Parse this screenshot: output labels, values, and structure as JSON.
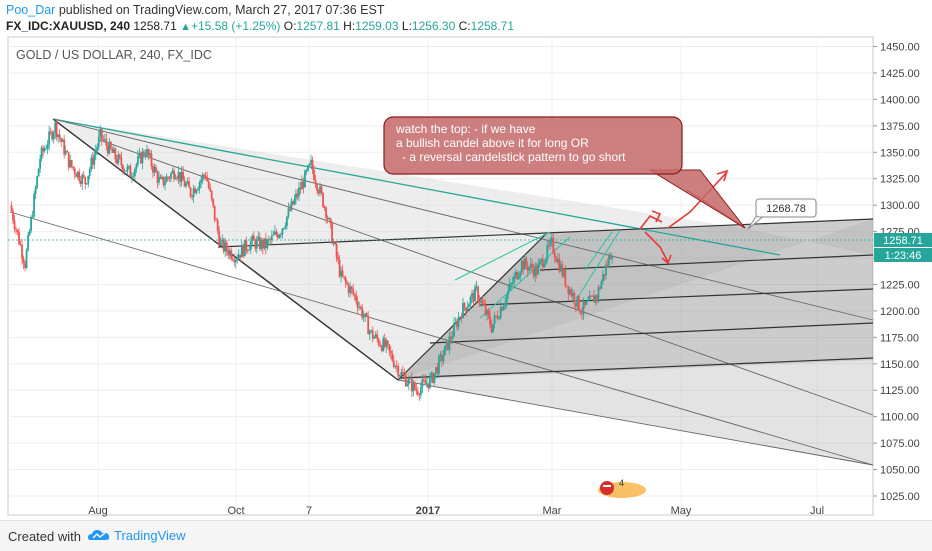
{
  "header": {
    "author": "Poo_Dar",
    "published": "published on TradingView.com, March 27, 2017 07:36 EST",
    "symbol": "FX_IDC:XAUUSD, 240",
    "last": "1258.71",
    "change": "+15.58 (+1.25%)",
    "open_label": "O:",
    "open": "1257.81",
    "high_label": "H:",
    "high": "1259.03",
    "low_label": "L:",
    "low": "1256.30",
    "close_label": "C:",
    "close": "1258.71"
  },
  "chart_data": {
    "type": "candlestick",
    "title": "GOLD / US DOLLAR, 240, FX_IDC",
    "ylim": [
      1007,
      1459
    ],
    "y_ticks": [
      1025,
      1050,
      1075,
      1100,
      1125,
      1150,
      1175,
      1200,
      1225,
      1250,
      1275,
      1300,
      1325,
      1350,
      1375,
      1400,
      1425,
      1450
    ],
    "x_ticks": [
      "Aug",
      "Oct",
      "7",
      "2017",
      "Mar",
      "May",
      "Jul"
    ],
    "price_anchors": [
      [
        0,
        1300
      ],
      [
        1,
        1245
      ],
      [
        2,
        1345
      ],
      [
        3,
        1375
      ],
      [
        4,
        1338
      ],
      [
        5,
        1322
      ],
      [
        6,
        1365
      ],
      [
        7,
        1345
      ],
      [
        8,
        1330
      ],
      [
        9,
        1352
      ],
      [
        10,
        1320
      ],
      [
        11,
        1333
      ],
      [
        12,
        1312
      ],
      [
        13,
        1330
      ],
      [
        14,
        1262
      ],
      [
        15,
        1252
      ],
      [
        16,
        1265
      ],
      [
        17,
        1262
      ],
      [
        18,
        1277
      ],
      [
        19,
        1307
      ],
      [
        20,
        1338
      ],
      [
        21,
        1295
      ],
      [
        22,
        1232
      ],
      [
        23,
        1212
      ],
      [
        24,
        1178
      ],
      [
        25,
        1165
      ],
      [
        26,
        1140
      ],
      [
        27,
        1125
      ],
      [
        28,
        1135
      ],
      [
        29,
        1165
      ],
      [
        30,
        1200
      ],
      [
        31,
        1218
      ],
      [
        32,
        1185
      ],
      [
        33,
        1215
      ],
      [
        34,
        1245
      ],
      [
        35,
        1238
      ],
      [
        36,
        1263
      ],
      [
        37,
        1225
      ],
      [
        38,
        1200
      ],
      [
        39,
        1215
      ],
      [
        40,
        1258.71
      ]
    ],
    "current_price": "1258.71",
    "countdown": "1:23:46",
    "price_marker": "1268.78",
    "annotation": {
      "line1": "watch the top: -  if we have",
      "line2": "a bullish candel above it for long OR",
      "line3": "- a reversal candelstick pattern to go short"
    },
    "colors": {
      "up": "#26a69a",
      "down": "#ef5350",
      "callout_bg": "#c46868",
      "arrow": "#e53935"
    }
  },
  "watermark": "4",
  "footer": {
    "created_with": "Created with",
    "brand": "TradingView"
  }
}
